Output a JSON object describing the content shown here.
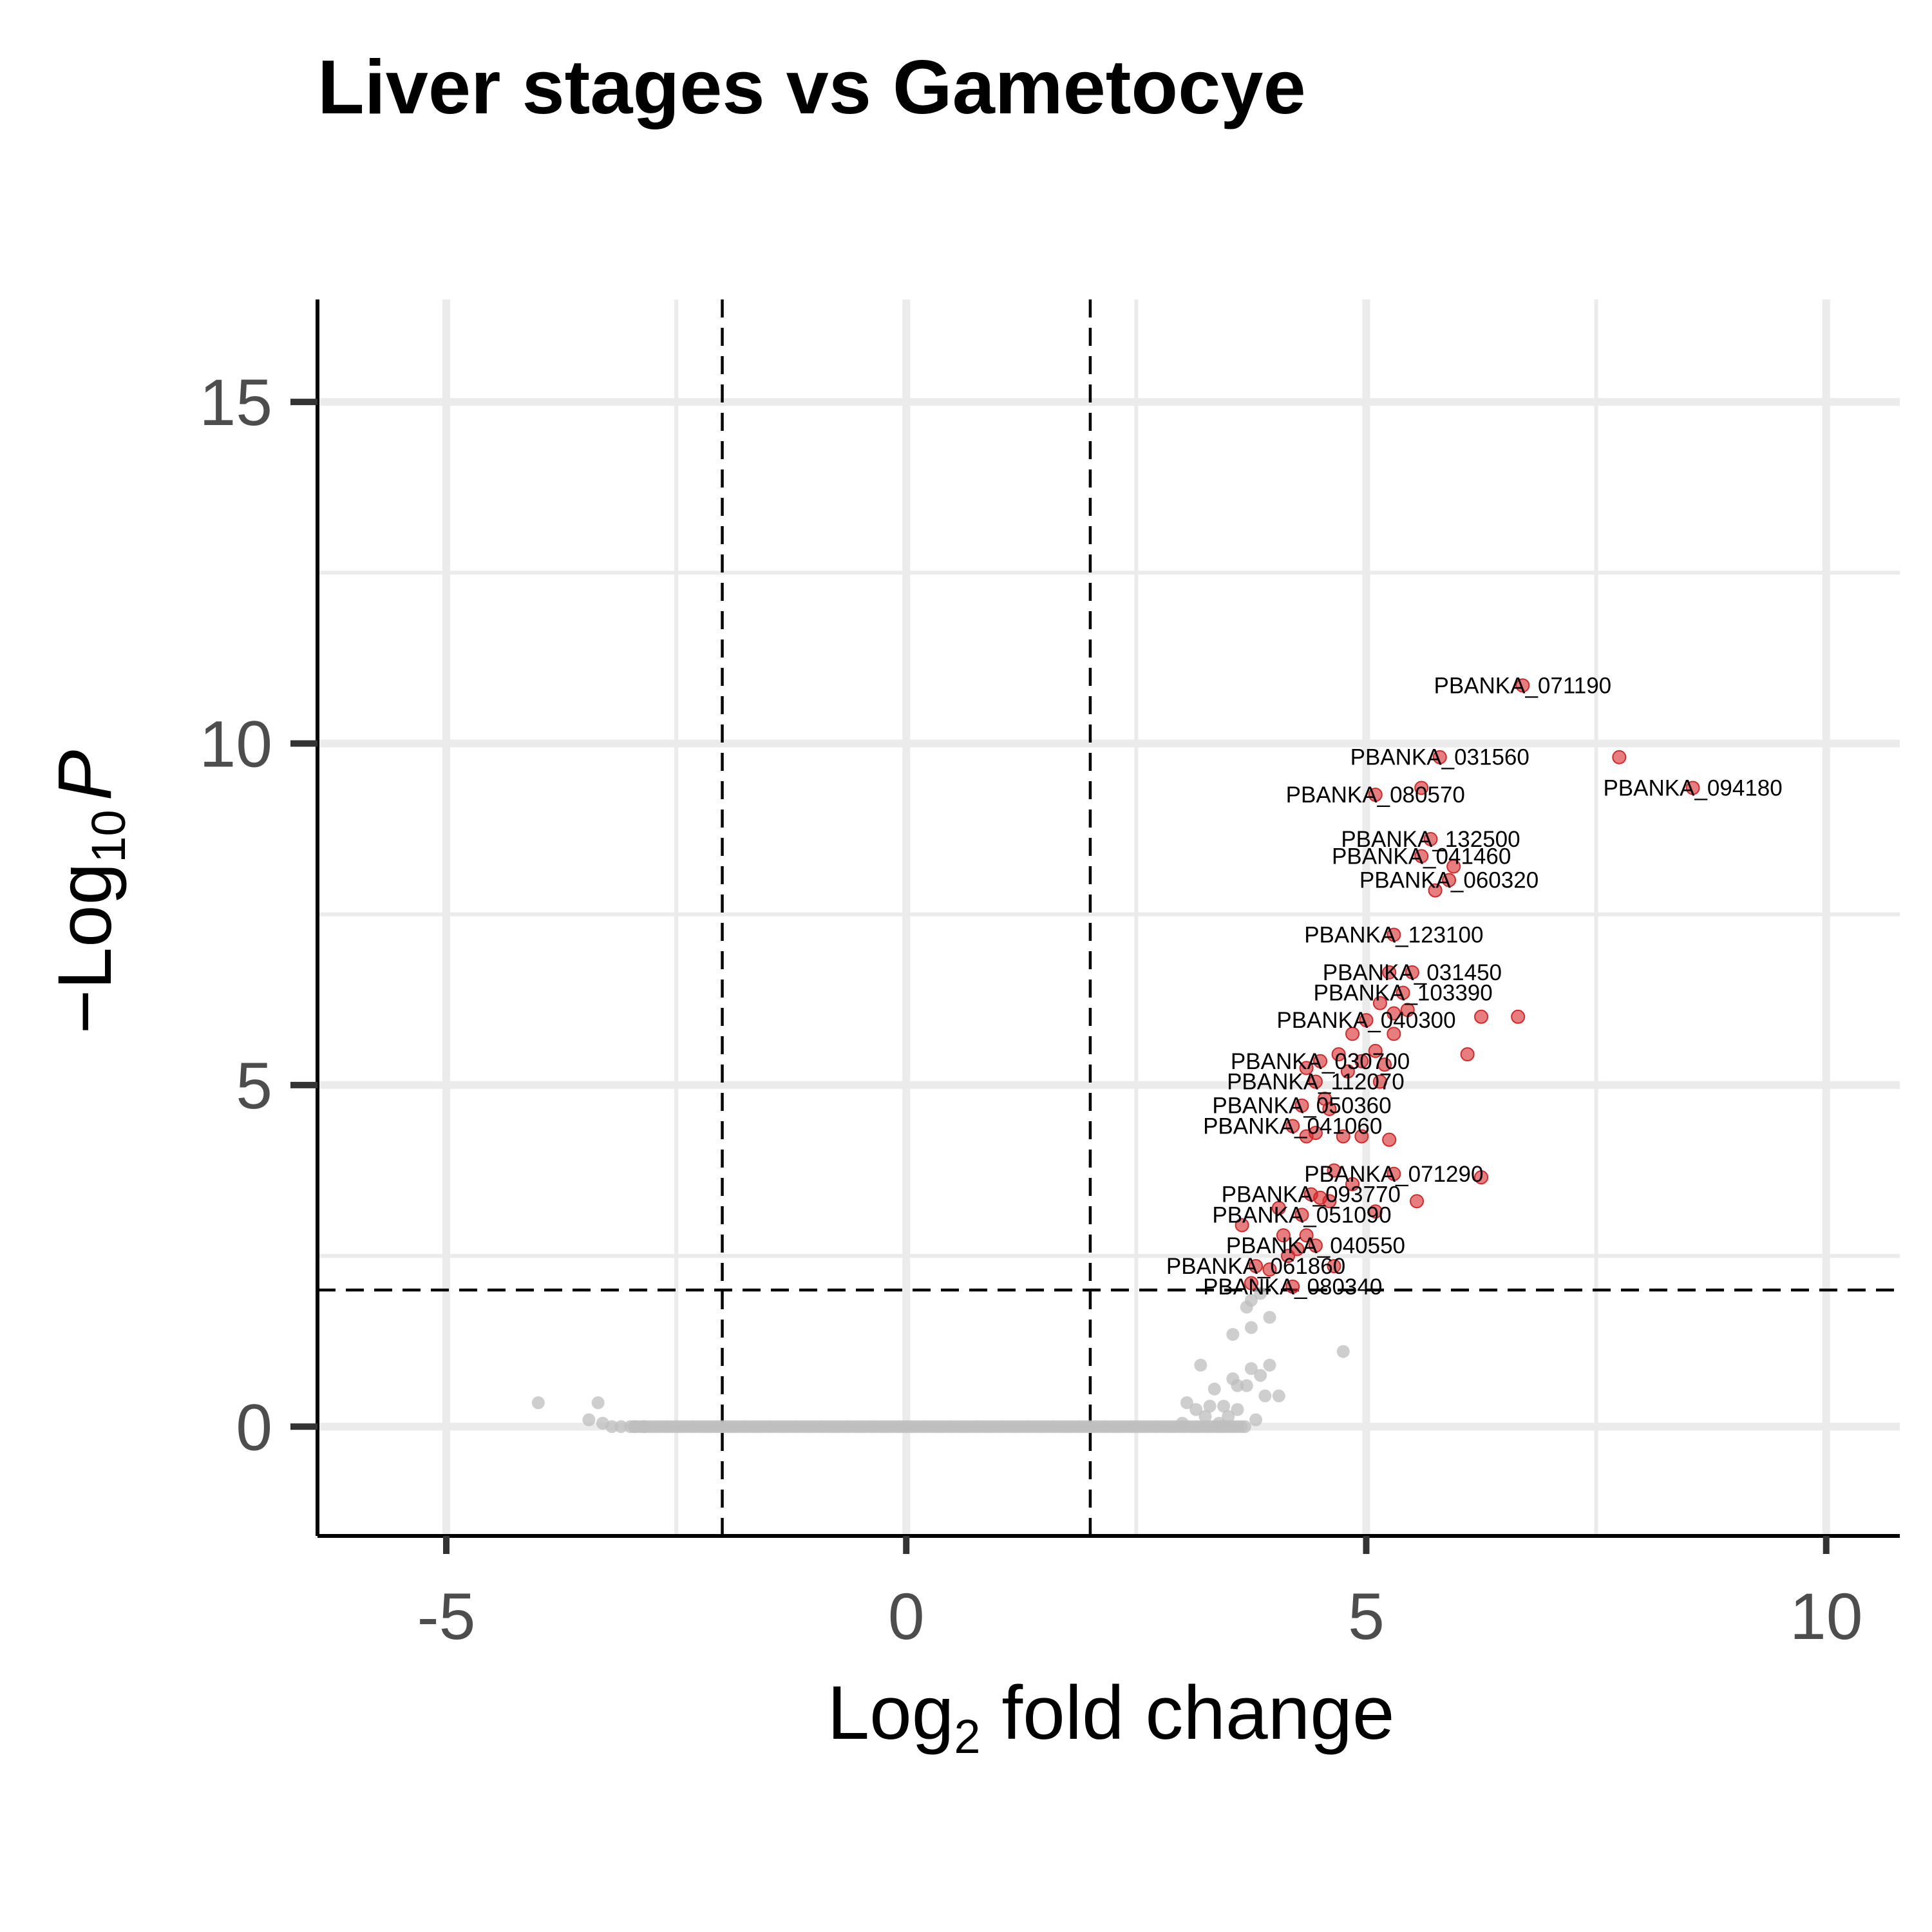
{
  "chart_data": {
    "type": "scatter",
    "title": "Liver stages vs Gametocye",
    "xlabel": {
      "prefix": "Log",
      "subscript": "2",
      "suffix": " fold change"
    },
    "ylabel": {
      "prefix": "−Log",
      "subscript": "10",
      "suffix": "P"
    },
    "xlim": [
      -6.4,
      10.8
    ],
    "ylim": [
      -1.6,
      16.5
    ],
    "x_ticks": [
      -5,
      0,
      5,
      10
    ],
    "x_tick_labels": [
      "-5",
      "0",
      "5",
      "10"
    ],
    "y_ticks": [
      0,
      5,
      10,
      15
    ],
    "y_tick_labels": [
      "0",
      "5",
      "10",
      "15"
    ],
    "x_minor_gridlines": [
      -2.5,
      2.5,
      7.5
    ],
    "y_minor_gridlines": [
      2.5,
      7.5,
      12.5
    ],
    "grid": true,
    "cutoffs": {
      "log2fc": [
        -2,
        2
      ],
      "neg_log10_p": 2
    },
    "colors": {
      "significant": "#d62728",
      "not_significant": "#bdbdbd"
    },
    "significant": [
      {
        "x": 6.7,
        "y": 10.85,
        "label": "PBANKA_071190"
      },
      {
        "x": 7.75,
        "y": 9.8
      },
      {
        "x": 5.8,
        "y": 9.8,
        "label": "PBANKA_031560"
      },
      {
        "x": 8.55,
        "y": 9.35,
        "label": "PBANKA_094180"
      },
      {
        "x": 5.6,
        "y": 9.35
      },
      {
        "x": 5.1,
        "y": 9.25,
        "label": "PBANKA_080570"
      },
      {
        "x": 5.7,
        "y": 8.6,
        "label": "PBANKA_132500"
      },
      {
        "x": 5.6,
        "y": 8.35,
        "label": "PBANKA_041460"
      },
      {
        "x": 5.95,
        "y": 8.2
      },
      {
        "x": 5.9,
        "y": 8.0,
        "label": "PBANKA_060320"
      },
      {
        "x": 5.75,
        "y": 7.85
      },
      {
        "x": 5.3,
        "y": 7.2,
        "label": "PBANKA_123100"
      },
      {
        "x": 5.5,
        "y": 6.65,
        "label": "PBANKA_031450"
      },
      {
        "x": 5.25,
        "y": 6.65
      },
      {
        "x": 5.4,
        "y": 6.35,
        "label": "PBANKA_103390"
      },
      {
        "x": 5.15,
        "y": 6.2
      },
      {
        "x": 5.3,
        "y": 6.05
      },
      {
        "x": 5.45,
        "y": 6.1
      },
      {
        "x": 6.25,
        "y": 6.0
      },
      {
        "x": 6.65,
        "y": 6.0
      },
      {
        "x": 5.0,
        "y": 5.95,
        "label": "PBANKA_040300"
      },
      {
        "x": 4.85,
        "y": 5.75
      },
      {
        "x": 5.3,
        "y": 5.75
      },
      {
        "x": 4.7,
        "y": 5.45
      },
      {
        "x": 5.1,
        "y": 5.5
      },
      {
        "x": 6.1,
        "y": 5.45
      },
      {
        "x": 4.5,
        "y": 5.35,
        "label": "PBANKA_030700"
      },
      {
        "x": 4.95,
        "y": 5.35
      },
      {
        "x": 5.2,
        "y": 5.3
      },
      {
        "x": 4.35,
        "y": 5.25
      },
      {
        "x": 4.8,
        "y": 5.2
      },
      {
        "x": 4.45,
        "y": 5.05,
        "label": "PBANKA_112070"
      },
      {
        "x": 5.15,
        "y": 5.05
      },
      {
        "x": 4.55,
        "y": 4.8
      },
      {
        "x": 4.3,
        "y": 4.7,
        "label": "PBANKA_050360"
      },
      {
        "x": 4.6,
        "y": 4.65
      },
      {
        "x": 4.2,
        "y": 4.4,
        "label": "PBANKA_041060"
      },
      {
        "x": 4.45,
        "y": 4.3
      },
      {
        "x": 4.35,
        "y": 4.25
      },
      {
        "x": 4.75,
        "y": 4.25
      },
      {
        "x": 4.95,
        "y": 4.25
      },
      {
        "x": 5.25,
        "y": 4.2
      },
      {
        "x": 5.3,
        "y": 3.7,
        "label": "PBANKA_071290"
      },
      {
        "x": 4.65,
        "y": 3.75
      },
      {
        "x": 6.25,
        "y": 3.65
      },
      {
        "x": 4.85,
        "y": 3.55
      },
      {
        "x": 4.4,
        "y": 3.4,
        "label": "PBANKA_093770"
      },
      {
        "x": 4.5,
        "y": 3.35
      },
      {
        "x": 4.6,
        "y": 3.3
      },
      {
        "x": 5.55,
        "y": 3.3
      },
      {
        "x": 4.05,
        "y": 3.2
      },
      {
        "x": 4.3,
        "y": 3.1,
        "label": "PBANKA_051090"
      },
      {
        "x": 5.1,
        "y": 3.15
      },
      {
        "x": 3.65,
        "y": 2.95
      },
      {
        "x": 4.1,
        "y": 2.8
      },
      {
        "x": 4.35,
        "y": 2.8
      },
      {
        "x": 4.45,
        "y": 2.65,
        "label": "PBANKA_040550"
      },
      {
        "x": 4.25,
        "y": 2.6
      },
      {
        "x": 4.15,
        "y": 2.5
      },
      {
        "x": 3.8,
        "y": 2.35,
        "label": "PBANKA_061860"
      },
      {
        "x": 3.95,
        "y": 2.3
      },
      {
        "x": 4.65,
        "y": 2.35
      },
      {
        "x": 3.75,
        "y": 2.1
      },
      {
        "x": 4.2,
        "y": 2.05,
        "label": "PBANKA_080340"
      }
    ],
    "not_significant": [
      {
        "x": -4.0,
        "y": 0.35
      },
      {
        "x": -3.35,
        "y": 0.35
      },
      {
        "x": -3.45,
        "y": 0.1
      },
      {
        "x": -3.3,
        "y": 0.05
      },
      {
        "x": -3.2,
        "y": 0.0
      },
      {
        "x": -3.1,
        "y": 0.0
      },
      {
        "x": -2.95,
        "y": 0.0
      },
      {
        "x": -2.85,
        "y": 0.0
      },
      {
        "x": 3.2,
        "y": 0.9
      },
      {
        "x": 3.35,
        "y": 0.55
      },
      {
        "x": 3.55,
        "y": 0.7
      },
      {
        "x": 3.6,
        "y": 0.6
      },
      {
        "x": 3.7,
        "y": 0.6
      },
      {
        "x": 3.75,
        "y": 0.85
      },
      {
        "x": 3.85,
        "y": 0.75
      },
      {
        "x": 3.9,
        "y": 0.45
      },
      {
        "x": 3.95,
        "y": 0.9
      },
      {
        "x": 4.05,
        "y": 0.45
      },
      {
        "x": 4.75,
        "y": 1.1
      },
      {
        "x": 3.55,
        "y": 1.35
      },
      {
        "x": 3.7,
        "y": 1.75
      },
      {
        "x": 3.75,
        "y": 1.85
      },
      {
        "x": 3.85,
        "y": 1.95
      },
      {
        "x": 3.95,
        "y": 1.6
      },
      {
        "x": 3.75,
        "y": 1.45
      },
      {
        "x": 3.05,
        "y": 0.35
      },
      {
        "x": 3.15,
        "y": 0.25
      },
      {
        "x": 3.3,
        "y": 0.3
      },
      {
        "x": 3.45,
        "y": 0.3
      },
      {
        "x": 3.6,
        "y": 0.25
      },
      {
        "x": 3.8,
        "y": 0.1
      },
      {
        "x": 3.4,
        "y": 0.05
      },
      {
        "x": 3.0,
        "y": 0.05
      },
      {
        "x": 3.25,
        "y": 0.15
      },
      {
        "x": 3.5,
        "y": 0.15
      }
    ],
    "baseline_band": {
      "x_range": [
        -3.0,
        3.7
      ],
      "y": 0
    }
  }
}
